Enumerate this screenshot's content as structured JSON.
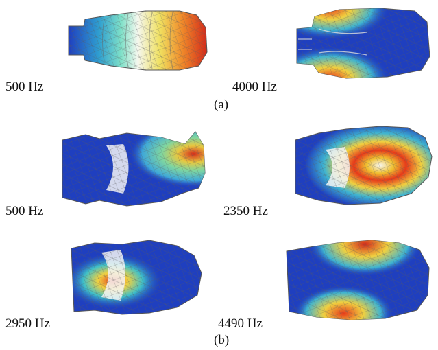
{
  "figure": {
    "part_a": {
      "caption": "(a)",
      "panels": [
        {
          "label": "500 Hz"
        },
        {
          "label": "4000 Hz"
        }
      ]
    },
    "part_b": {
      "caption": "(b)",
      "panels": [
        {
          "label": "500 Hz"
        },
        {
          "label": "2350 Hz"
        },
        {
          "label": "2950 Hz"
        },
        {
          "label": "4490 Hz"
        }
      ]
    },
    "colors": {
      "field_low": "#1f3fbf",
      "field_mid": "#33cccc",
      "field_midhigh": "#e6e633",
      "field_high": "#e63a1a",
      "mesh_lines": "#6a6a6a"
    }
  }
}
